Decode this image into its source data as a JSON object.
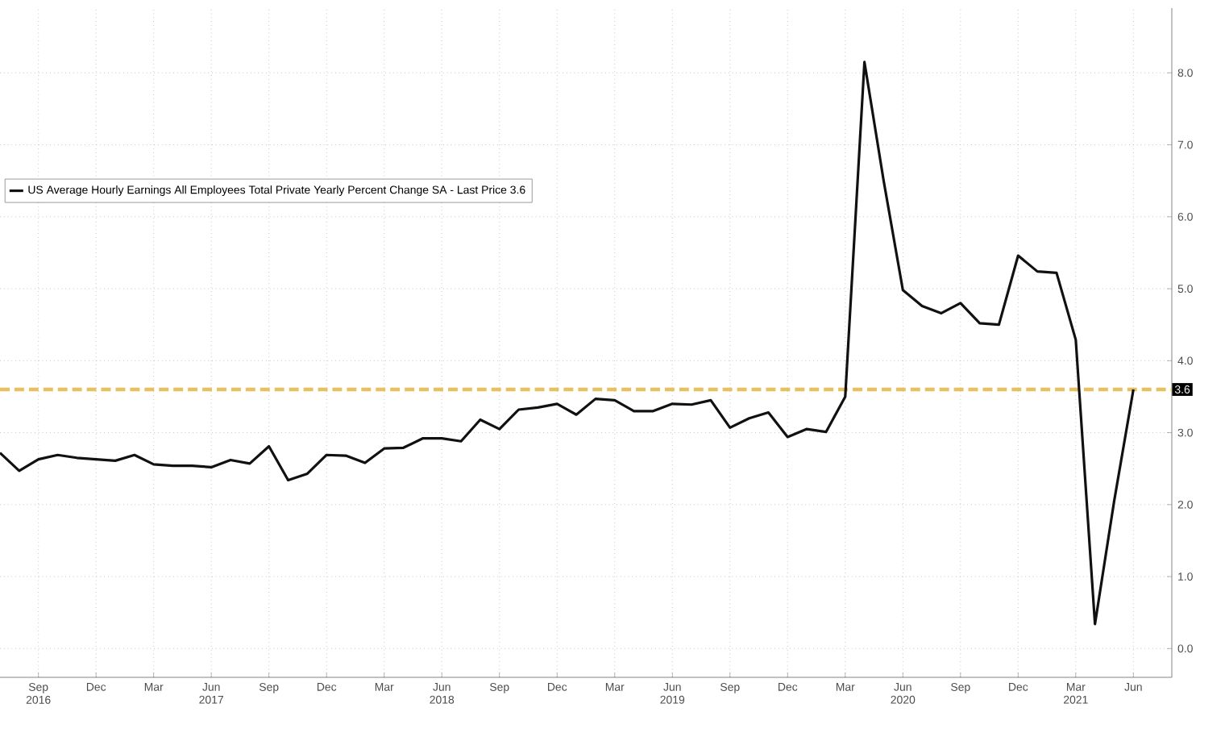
{
  "chart_data": {
    "type": "line",
    "x": [
      "2016-07",
      "2016-08",
      "2016-09",
      "2016-10",
      "2016-11",
      "2016-12",
      "2017-01",
      "2017-02",
      "2017-03",
      "2017-04",
      "2017-05",
      "2017-06",
      "2017-07",
      "2017-08",
      "2017-09",
      "2017-10",
      "2017-11",
      "2017-12",
      "2018-01",
      "2018-02",
      "2018-03",
      "2018-04",
      "2018-05",
      "2018-06",
      "2018-07",
      "2018-08",
      "2018-09",
      "2018-10",
      "2018-11",
      "2018-12",
      "2019-01",
      "2019-02",
      "2019-03",
      "2019-04",
      "2019-05",
      "2019-06",
      "2019-07",
      "2019-08",
      "2019-09",
      "2019-10",
      "2019-11",
      "2019-12",
      "2020-01",
      "2020-02",
      "2020-03",
      "2020-04",
      "2020-05",
      "2020-06",
      "2020-07",
      "2020-08",
      "2020-09",
      "2020-10",
      "2020-11",
      "2020-12",
      "2021-01",
      "2021-02",
      "2021-03",
      "2021-04",
      "2021-05",
      "2021-06"
    ],
    "series": [
      {
        "name": "US Average Hourly Earnings All Employees Total Private Yearly Percent Change SA - Last Price 3.6",
        "color": "#111111",
        "values": [
          2.72,
          2.47,
          2.63,
          2.69,
          2.65,
          2.63,
          2.61,
          2.69,
          2.56,
          2.54,
          2.54,
          2.52,
          2.62,
          2.57,
          2.81,
          2.34,
          2.43,
          2.69,
          2.68,
          2.58,
          2.78,
          2.79,
          2.92,
          2.92,
          2.88,
          3.18,
          3.05,
          3.32,
          3.35,
          3.4,
          3.25,
          3.47,
          3.45,
          3.3,
          3.3,
          3.4,
          3.39,
          3.45,
          3.07,
          3.2,
          3.28,
          2.94,
          3.05,
          3.01,
          3.5,
          8.15,
          6.5,
          4.98,
          4.76,
          4.66,
          4.8,
          4.52,
          4.5,
          5.46,
          5.24,
          5.22,
          4.29,
          0.34,
          2.05,
          3.6
        ]
      }
    ],
    "xlim": [
      "2016-07",
      "2021-08"
    ],
    "xticks": [
      {
        "value": "2016-09",
        "label": "Sep 2016"
      },
      {
        "value": "2016-12",
        "label": "Dec"
      },
      {
        "value": "2017-03",
        "label": "Mar"
      },
      {
        "value": "2017-06",
        "label": "Jun 2017"
      },
      {
        "value": "2017-09",
        "label": "Sep"
      },
      {
        "value": "2017-12",
        "label": "Dec"
      },
      {
        "value": "2018-03",
        "label": "Mar"
      },
      {
        "value": "2018-06",
        "label": "Jun 2018"
      },
      {
        "value": "2018-09",
        "label": "Sep"
      },
      {
        "value": "2018-12",
        "label": "Dec"
      },
      {
        "value": "2019-03",
        "label": "Mar"
      },
      {
        "value": "2019-06",
        "label": "Jun 2019"
      },
      {
        "value": "2019-09",
        "label": "Sep"
      },
      {
        "value": "2019-12",
        "label": "Dec"
      },
      {
        "value": "2020-03",
        "label": "Mar"
      },
      {
        "value": "2020-06",
        "label": "Jun 2020"
      },
      {
        "value": "2020-09",
        "label": "Sep"
      },
      {
        "value": "2020-12",
        "label": "Dec"
      },
      {
        "value": "2021-03",
        "label": "Mar 2021"
      },
      {
        "value": "2021-06",
        "label": "Jun"
      }
    ],
    "ylim": [
      -0.4,
      8.9
    ],
    "yticks": [
      {
        "value": 0,
        "label": "0.0"
      },
      {
        "value": 1,
        "label": "1.0"
      },
      {
        "value": 2,
        "label": "2.0"
      },
      {
        "value": 3,
        "label": "3.0"
      },
      {
        "value": 4,
        "label": "4.0"
      },
      {
        "value": 5,
        "label": "5.0"
      },
      {
        "value": 6,
        "label": "6.0"
      },
      {
        "value": 7,
        "label": "7.0"
      },
      {
        "value": 8,
        "label": "8.0"
      }
    ],
    "ref_lines": [
      {
        "axis": "y",
        "value": 3.6,
        "label": "3.6",
        "color": "#e8c060",
        "line_style": "dashed"
      }
    ],
    "grid": true,
    "legend": "top left",
    "marker": "none",
    "line_style": "solid"
  }
}
